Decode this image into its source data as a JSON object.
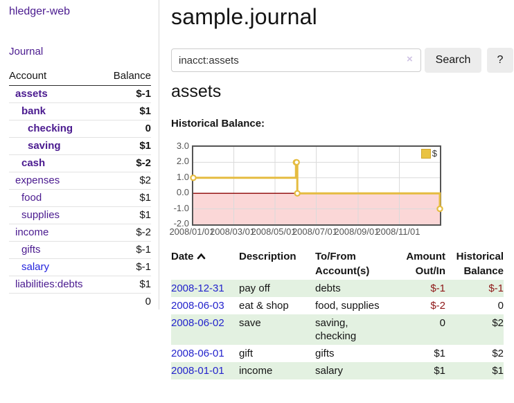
{
  "colors": {
    "link_purple": "#4a1a8f",
    "link_blue": "#2323cc",
    "negative_strong": "#9e1b1b",
    "negative_soft": "#bb6a6a",
    "row_stripe_green": "#e3f1e1",
    "chart_line_gold": "#e5bc40",
    "chart_negative_fill": "#fbd7d7",
    "chart_zero_line": "#8b0000",
    "chart_grid": "#dadada",
    "chart_border": "#545454"
  },
  "sidebar": {
    "brand": "hledger-web",
    "journal_link": "Journal",
    "accounts": {
      "header_account": "Account",
      "header_balance": "Balance",
      "rows": [
        {
          "name": "assets",
          "balance": "$-1",
          "indent": 1,
          "bold": true,
          "balance_tone": "neg-strong"
        },
        {
          "name": "bank",
          "balance": "$1",
          "indent": 2,
          "bold": true,
          "balance_tone": "normal"
        },
        {
          "name": "checking",
          "balance": "0",
          "indent": 3,
          "bold": true,
          "balance_tone": "normal"
        },
        {
          "name": "saving",
          "balance": "$1",
          "indent": 3,
          "bold": true,
          "balance_tone": "normal"
        },
        {
          "name": "cash",
          "balance": "$-2",
          "indent": 2,
          "bold": true,
          "balance_tone": "neg-strong"
        },
        {
          "name": "expenses",
          "balance": "$2",
          "indent": 1,
          "bold": false,
          "balance_tone": "normal"
        },
        {
          "name": "food",
          "balance": "$1",
          "indent": 2,
          "bold": false,
          "balance_tone": "normal"
        },
        {
          "name": "supplies",
          "balance": "$1",
          "indent": 2,
          "bold": false,
          "balance_tone": "normal"
        },
        {
          "name": "income",
          "balance": "$-2",
          "indent": 1,
          "bold": false,
          "balance_tone": "neg-soft"
        },
        {
          "name": "gifts",
          "balance": "$-1",
          "indent": 2,
          "bold": false,
          "balance_tone": "neg-soft"
        },
        {
          "name": "salary",
          "balance": "$-1",
          "indent": 2,
          "bold": false,
          "balance_tone": "neg-soft",
          "link_tone": "blue"
        },
        {
          "name": "liabilities:debts",
          "balance": "$1",
          "indent": 1,
          "bold": false,
          "balance_tone": "normal"
        }
      ],
      "total": "0"
    }
  },
  "main": {
    "title": "sample.journal",
    "search": {
      "value": "inacct:assets",
      "clear_icon": "×",
      "search_button": "Search",
      "help_button": "?"
    },
    "account_heading": "assets",
    "section_label": "Historical Balance:"
  },
  "chart_data": {
    "type": "line",
    "step": true,
    "title": "Historical Balance",
    "legend": [
      {
        "label": "$",
        "color": "#e9c343"
      }
    ],
    "legend_position": "top-right",
    "grid": true,
    "ylim": [
      -2.0,
      3.0
    ],
    "y_ticks": [
      "3.0",
      "2.0",
      "1.0",
      "0.0",
      "-1.0",
      "-2.0"
    ],
    "x_range": [
      "2008-01-01",
      "2008-12-31"
    ],
    "x_ticks": [
      "2008/01/01",
      "2008/03/01",
      "2008/05/01",
      "2008/07/01",
      "2008/09/01",
      "2008/11/01"
    ],
    "series": [
      {
        "name": "$",
        "points": [
          {
            "date": "2008-01-01",
            "value": 1
          },
          {
            "date": "2008-06-01",
            "value": 2
          },
          {
            "date": "2008-06-02",
            "value": 2
          },
          {
            "date": "2008-06-03",
            "value": 0
          },
          {
            "date": "2008-12-31",
            "value": -1
          }
        ]
      }
    ],
    "negative_region": {
      "from": 0,
      "to": -2
    }
  },
  "register": {
    "headers": {
      "date": "Date",
      "description": "Description",
      "accounts": "To/From Account(s)",
      "amount": "Amount Out/In",
      "balance": "Historical Balance"
    },
    "sort_column": "date",
    "sort_icon": "chevron-up",
    "rows": [
      {
        "date": "2008-12-31",
        "description": "pay off",
        "accounts": "debts",
        "amount": "$-1",
        "balance": "$-1"
      },
      {
        "date": "2008-06-03",
        "description": "eat & shop",
        "accounts": "food, supplies",
        "amount": "$-2",
        "balance": "0"
      },
      {
        "date": "2008-06-02",
        "description": "save",
        "accounts": "saving, checking",
        "amount": "0",
        "balance": "$2"
      },
      {
        "date": "2008-06-01",
        "description": "gift",
        "accounts": "gifts",
        "amount": "$1",
        "balance": "$2"
      },
      {
        "date": "2008-01-01",
        "description": "income",
        "accounts": "salary",
        "amount": "$1",
        "balance": "$1"
      }
    ]
  }
}
